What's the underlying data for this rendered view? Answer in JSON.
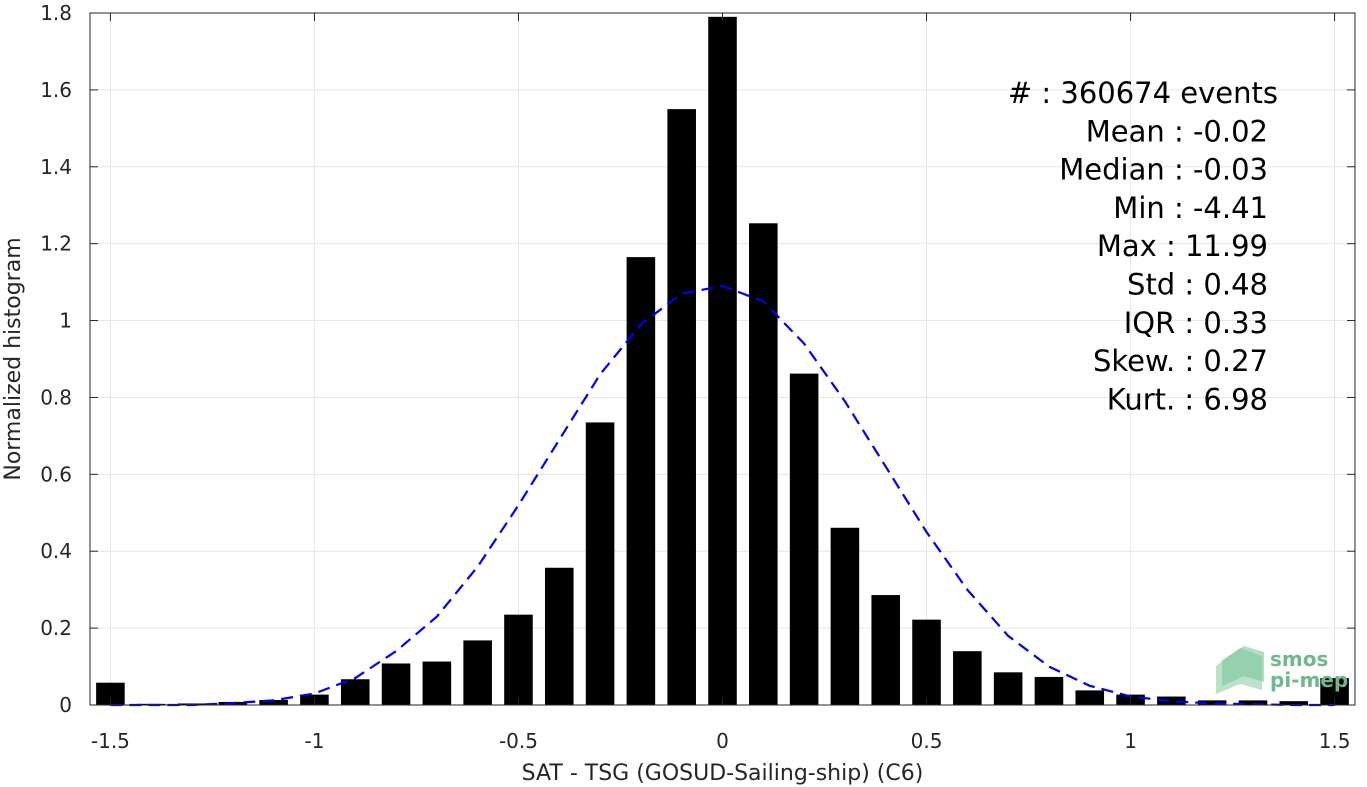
{
  "chart_data": {
    "type": "bar",
    "xlabel": "SAT - TSG (GOSUD-Sailing-ship) (C6)",
    "ylabel": "Normalized histogram",
    "xlim": [
      -1.55,
      1.55
    ],
    "ylim": [
      0,
      1.8
    ],
    "grid": true,
    "bar_width": 0.07,
    "x_ticks": [
      -1.5,
      -1,
      -0.5,
      0,
      0.5,
      1,
      1.5
    ],
    "x_tick_labels": [
      "-1.5",
      "-1",
      "-0.5",
      "0",
      "0.5",
      "1",
      "1.5"
    ],
    "y_ticks": [
      0,
      0.2,
      0.4,
      0.6,
      0.8,
      1,
      1.2,
      1.4,
      1.6,
      1.8
    ],
    "y_tick_labels": [
      "0",
      "0.2",
      "0.4",
      "0.6",
      "0.8",
      "1",
      "1.2",
      "1.4",
      "1.6",
      "1.8"
    ],
    "bars": {
      "x": [
        -1.5,
        -1.4,
        -1.3,
        -1.2,
        -1.1,
        -1.0,
        -0.9,
        -0.8,
        -0.7,
        -0.6,
        -0.5,
        -0.4,
        -0.3,
        -0.2,
        -0.1,
        0.0,
        0.1,
        0.2,
        0.3,
        0.4,
        0.5,
        0.6,
        0.7,
        0.8,
        0.9,
        1.0,
        1.1,
        1.2,
        1.3,
        1.4,
        1.5
      ],
      "values": [
        0.058,
        0.003,
        0.004,
        0.008,
        0.013,
        0.027,
        0.067,
        0.108,
        0.113,
        0.168,
        0.235,
        0.357,
        0.735,
        1.165,
        1.55,
        1.79,
        1.253,
        0.862,
        0.461,
        0.286,
        0.222,
        0.14,
        0.085,
        0.073,
        0.038,
        0.027,
        0.022,
        0.012,
        0.012,
        0.01,
        0.07
      ],
      "color": "#000000"
    },
    "fit_curve": {
      "style": "dashed",
      "color": "#0000ee",
      "x": [
        -1.5,
        -1.4,
        -1.3,
        -1.2,
        -1.1,
        -1.0,
        -0.9,
        -0.8,
        -0.7,
        -0.6,
        -0.5,
        -0.4,
        -0.3,
        -0.2,
        -0.1,
        0.0,
        0.1,
        0.2,
        0.3,
        0.4,
        0.5,
        0.6,
        0.7,
        0.8,
        0.9,
        1.0,
        1.1,
        1.2,
        1.3,
        1.4,
        1.5
      ],
      "y": [
        0.0,
        0.0,
        0.0,
        0.005,
        0.012,
        0.03,
        0.07,
        0.14,
        0.23,
        0.36,
        0.52,
        0.69,
        0.86,
        0.99,
        1.07,
        1.09,
        1.05,
        0.94,
        0.79,
        0.62,
        0.45,
        0.3,
        0.18,
        0.1,
        0.05,
        0.022,
        0.01,
        0.004,
        0.002,
        0.0,
        0.0
      ]
    },
    "stats": [
      "#  : 360674 events",
      "Mean : -0.02",
      "Median : -0.03",
      "Min : -4.41",
      "Max : 11.99",
      "Std : 0.48",
      "IQR : 0.33",
      "Skew. : 0.27",
      "Kurt. : 6.98"
    ]
  },
  "logo": {
    "line1": "smos",
    "line2": "pi-mep",
    "color": "#6fb88e"
  }
}
